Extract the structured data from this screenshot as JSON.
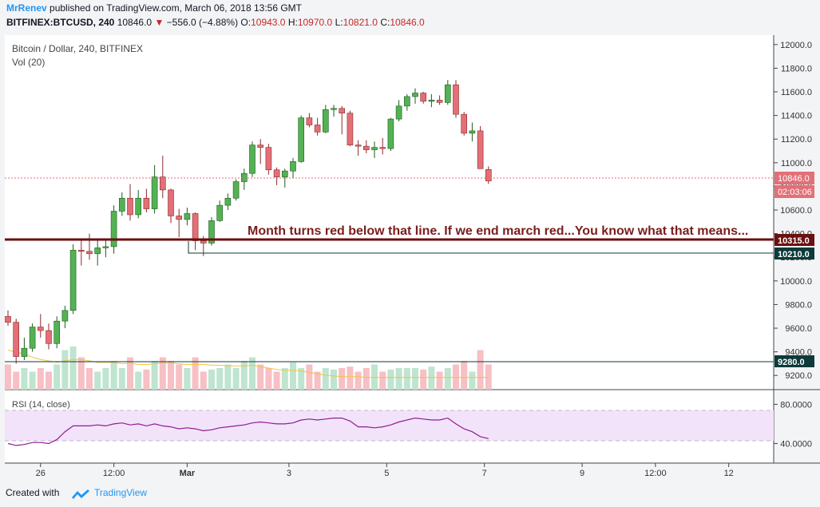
{
  "header": {
    "author": "MrRenev",
    "published": "published on TradingView.com, March 06, 2018 13:56 GMT",
    "symbol": "BITFINEX:BTCUSD, 240",
    "last": "10846.0",
    "change_arrow": "▼",
    "change": "−556.0 (−4.88%)",
    "open_label": "O:",
    "open": "10943.0",
    "high_label": "H:",
    "high": "10970.0",
    "low_label": "L:",
    "low": "10821.0",
    "close_label": "C:",
    "close": "10846.0"
  },
  "legend": {
    "title": "Bitcoin / Dollar, 240, BITFINEX",
    "volume": "Vol (20)",
    "rsi": "RSI (14, close)"
  },
  "annotation": "Month turns red below that line. If we end march red...You know what that means...",
  "price_tags": {
    "last": "10846.0",
    "countdown": "02:03:06",
    "level_red": "10315.0",
    "level_dark": "10210.0",
    "level_low": "9280.0"
  },
  "footer": {
    "created_with": "Created with",
    "brand": "TradingView"
  },
  "colors": {
    "up": "#53b253",
    "down": "#e36f77",
    "up_border": "#1f5b1f",
    "down_border": "#8a2a2a",
    "red_line": "#6b0f0f",
    "dark_line": "#0e3a3a",
    "annotation": "#7a1d1d",
    "rsi_line": "#8e1f8e",
    "rsi_band": "#f2e3fb",
    "vol_ma": "#f5c242",
    "vol_up": "#bfe4cf",
    "vol_down": "#f6c0c4"
  },
  "chart_data": {
    "type": "candlestick",
    "price_axis": {
      "range": [
        9080,
        12080
      ],
      "ticks": [
        "12000.0",
        "11800.0",
        "11600.0",
        "11400.0",
        "11200.0",
        "11000.0",
        "10800.0",
        "10600.0",
        "10400.0",
        "10200.0",
        "10000.0",
        "9800.0",
        "9600.0",
        "9400.0",
        "9200.0"
      ]
    },
    "rsi_axis": {
      "range": [
        20,
        95
      ],
      "ticks": [
        "80.0000",
        "40.0000"
      ],
      "band": [
        30,
        70
      ]
    },
    "time_axis": [
      "26",
      "12:00",
      "Mar",
      "3",
      "5",
      "7",
      "9",
      "12:00",
      "12"
    ],
    "horizontal_levels": [
      {
        "value": 10315,
        "label": "10315.0"
      },
      {
        "value": 10210,
        "label": "10210.0"
      },
      {
        "value": 9280,
        "label": "9280.0"
      }
    ],
    "candles": [
      {
        "o": 9700,
        "h": 9750,
        "l": 9620,
        "c": 9650
      },
      {
        "o": 9650,
        "h": 9680,
        "l": 9300,
        "c": 9360
      },
      {
        "o": 9360,
        "h": 9520,
        "l": 9330,
        "c": 9430
      },
      {
        "o": 9430,
        "h": 9640,
        "l": 9400,
        "c": 9610
      },
      {
        "o": 9610,
        "h": 9720,
        "l": 9520,
        "c": 9580
      },
      {
        "o": 9580,
        "h": 9640,
        "l": 9420,
        "c": 9470
      },
      {
        "o": 9470,
        "h": 9700,
        "l": 9430,
        "c": 9660
      },
      {
        "o": 9660,
        "h": 9790,
        "l": 9600,
        "c": 9750
      },
      {
        "o": 9750,
        "h": 10310,
        "l": 9720,
        "c": 10260
      },
      {
        "o": 10260,
        "h": 10350,
        "l": 10130,
        "c": 10250
      },
      {
        "o": 10250,
        "h": 10400,
        "l": 10180,
        "c": 10230
      },
      {
        "o": 10230,
        "h": 10360,
        "l": 10130,
        "c": 10280
      },
      {
        "o": 10280,
        "h": 10340,
        "l": 10200,
        "c": 10290
      },
      {
        "o": 10290,
        "h": 10640,
        "l": 10230,
        "c": 10590
      },
      {
        "o": 10590,
        "h": 10750,
        "l": 10550,
        "c": 10700
      },
      {
        "o": 10700,
        "h": 10820,
        "l": 10510,
        "c": 10560
      },
      {
        "o": 10560,
        "h": 10770,
        "l": 10530,
        "c": 10700
      },
      {
        "o": 10700,
        "h": 10780,
        "l": 10580,
        "c": 10610
      },
      {
        "o": 10610,
        "h": 10980,
        "l": 10570,
        "c": 10880
      },
      {
        "o": 10880,
        "h": 11060,
        "l": 10700,
        "c": 10770
      },
      {
        "o": 10770,
        "h": 10780,
        "l": 10490,
        "c": 10550
      },
      {
        "o": 10550,
        "h": 10610,
        "l": 10370,
        "c": 10520
      },
      {
        "o": 10520,
        "h": 10620,
        "l": 10470,
        "c": 10570
      },
      {
        "o": 10570,
        "h": 10580,
        "l": 10260,
        "c": 10340
      },
      {
        "o": 10340,
        "h": 10380,
        "l": 10210,
        "c": 10320
      },
      {
        "o": 10320,
        "h": 10540,
        "l": 10300,
        "c": 10510
      },
      {
        "o": 10510,
        "h": 10680,
        "l": 10500,
        "c": 10640
      },
      {
        "o": 10640,
        "h": 10740,
        "l": 10600,
        "c": 10700
      },
      {
        "o": 10700,
        "h": 10860,
        "l": 10680,
        "c": 10840
      },
      {
        "o": 10840,
        "h": 10950,
        "l": 10770,
        "c": 10910
      },
      {
        "o": 10910,
        "h": 11180,
        "l": 10880,
        "c": 11150
      },
      {
        "o": 11150,
        "h": 11200,
        "l": 10990,
        "c": 11130
      },
      {
        "o": 11130,
        "h": 11160,
        "l": 10900,
        "c": 10940
      },
      {
        "o": 10940,
        "h": 10960,
        "l": 10810,
        "c": 10880
      },
      {
        "o": 10880,
        "h": 10950,
        "l": 10790,
        "c": 10930
      },
      {
        "o": 10930,
        "h": 11040,
        "l": 10870,
        "c": 11010
      },
      {
        "o": 11010,
        "h": 11400,
        "l": 11000,
        "c": 11380
      },
      {
        "o": 11380,
        "h": 11420,
        "l": 11300,
        "c": 11320
      },
      {
        "o": 11320,
        "h": 11380,
        "l": 11230,
        "c": 11260
      },
      {
        "o": 11260,
        "h": 11490,
        "l": 11250,
        "c": 11450
      },
      {
        "o": 11450,
        "h": 11490,
        "l": 11390,
        "c": 11460
      },
      {
        "o": 11460,
        "h": 11480,
        "l": 11240,
        "c": 11420
      },
      {
        "o": 11420,
        "h": 11440,
        "l": 11140,
        "c": 11150
      },
      {
        "o": 11150,
        "h": 11190,
        "l": 11060,
        "c": 11140
      },
      {
        "o": 11140,
        "h": 11190,
        "l": 11080,
        "c": 11110
      },
      {
        "o": 11110,
        "h": 11180,
        "l": 11040,
        "c": 11130
      },
      {
        "o": 11130,
        "h": 11210,
        "l": 11070,
        "c": 11120
      },
      {
        "o": 11120,
        "h": 11380,
        "l": 11100,
        "c": 11370
      },
      {
        "o": 11370,
        "h": 11530,
        "l": 11350,
        "c": 11480
      },
      {
        "o": 11480,
        "h": 11580,
        "l": 11440,
        "c": 11560
      },
      {
        "o": 11560,
        "h": 11630,
        "l": 11500,
        "c": 11590
      },
      {
        "o": 11590,
        "h": 11600,
        "l": 11500,
        "c": 11520
      },
      {
        "o": 11520,
        "h": 11580,
        "l": 11470,
        "c": 11530
      },
      {
        "o": 11530,
        "h": 11570,
        "l": 11490,
        "c": 11510
      },
      {
        "o": 11510,
        "h": 11700,
        "l": 11490,
        "c": 11660
      },
      {
        "o": 11660,
        "h": 11700,
        "l": 11380,
        "c": 11410
      },
      {
        "o": 11410,
        "h": 11430,
        "l": 11230,
        "c": 11250
      },
      {
        "o": 11250,
        "h": 11340,
        "l": 11180,
        "c": 11270
      },
      {
        "o": 11270,
        "h": 11310,
        "l": 10960,
        "c": 10950
      },
      {
        "o": 10943,
        "h": 10970,
        "l": 10821,
        "c": 10846
      }
    ],
    "volume": [
      0.35,
      0.25,
      0.3,
      0.25,
      0.3,
      0.25,
      0.35,
      0.55,
      0.6,
      0.45,
      0.3,
      0.25,
      0.3,
      0.4,
      0.3,
      0.45,
      0.25,
      0.28,
      0.4,
      0.45,
      0.4,
      0.35,
      0.3,
      0.45,
      0.25,
      0.28,
      0.3,
      0.35,
      0.3,
      0.4,
      0.45,
      0.35,
      0.3,
      0.25,
      0.3,
      0.38,
      0.3,
      0.35,
      0.25,
      0.3,
      0.28,
      0.3,
      0.32,
      0.25,
      0.3,
      0.35,
      0.25,
      0.28,
      0.3,
      0.3,
      0.3,
      0.28,
      0.32,
      0.25,
      0.3,
      0.35,
      0.4,
      0.25,
      0.55,
      0.35
    ],
    "volume_ma": [
      0.55,
      0.52,
      0.5,
      0.45,
      0.42,
      0.4,
      0.38,
      0.4,
      0.42,
      0.42,
      0.4,
      0.38,
      0.38,
      0.38,
      0.36,
      0.37,
      0.35,
      0.35,
      0.36,
      0.37,
      0.37,
      0.36,
      0.35,
      0.35,
      0.35,
      0.34,
      0.34,
      0.33,
      0.33,
      0.33,
      0.34,
      0.32,
      0.3,
      0.28,
      0.27,
      0.27,
      0.26,
      0.24,
      0.22,
      0.2,
      0.19,
      0.18,
      0.18,
      0.18,
      0.17,
      0.17,
      0.17,
      0.17,
      0.17,
      0.17,
      0.17,
      0.17,
      0.17,
      0.17,
      0.17,
      0.17,
      0.17,
      0.17,
      0.17,
      0.17
    ],
    "rsi": [
      40,
      38,
      39,
      41,
      41,
      40,
      44,
      52,
      58,
      58,
      58,
      59,
      58,
      60,
      61,
      59,
      60,
      58,
      60,
      58,
      57,
      55,
      56,
      55,
      53,
      54,
      56,
      57,
      58,
      59,
      61,
      62,
      61,
      60,
      60,
      61,
      64,
      65,
      64,
      65,
      66,
      66,
      63,
      57,
      57,
      56,
      57,
      59,
      62,
      64,
      66,
      65,
      64,
      64,
      66,
      60,
      55,
      52,
      47,
      45
    ]
  }
}
